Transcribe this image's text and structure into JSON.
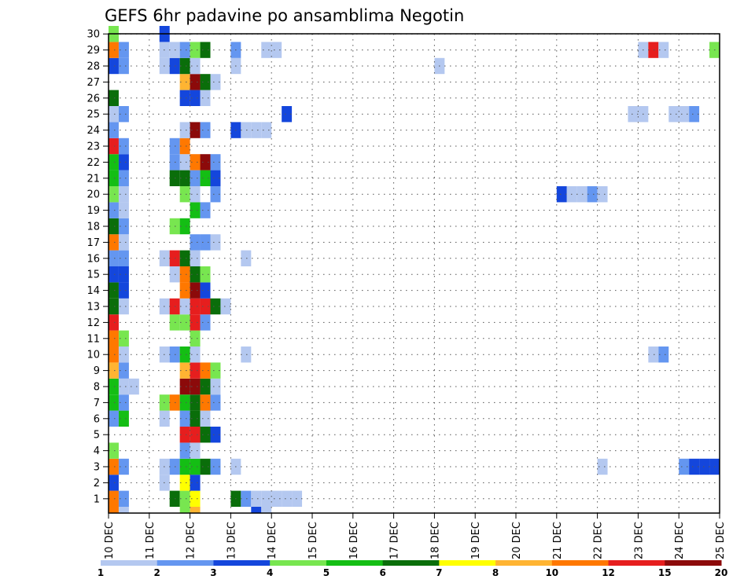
{
  "chart_data": {
    "type": "heatmap",
    "title": "GEFS 6hr padavine po ansamblima Negotin",
    "xlabel": "",
    "ylabel": "",
    "x_tick_labels": [
      "10 DEC",
      "11 DEC",
      "12 DEC",
      "13 DEC",
      "14 DEC",
      "15 DEC",
      "16 DEC",
      "17 DEC",
      "18 DEC",
      "19 DEC",
      "20 DEC",
      "21 DEC",
      "22 DEC",
      "23 DEC",
      "24 DEC",
      "25 DEC"
    ],
    "y_tick_labels": [
      "1",
      "2",
      "3",
      "4",
      "5",
      "6",
      "7",
      "8",
      "9",
      "10",
      "11",
      "12",
      "13",
      "14",
      "15",
      "16",
      "17",
      "18",
      "19",
      "20",
      "21",
      "22",
      "23",
      "24",
      "25",
      "26",
      "27",
      "28",
      "29",
      "30"
    ],
    "x_unit": "6-hour step from 10 DEC 00Z",
    "xlim": [
      0,
      60
    ],
    "ylim": [
      0,
      30
    ],
    "grid": true,
    "colorbar": {
      "boundaries": [
        "1",
        "2",
        "3",
        "4",
        "5",
        "6",
        "7",
        "8",
        "10",
        "12",
        "15",
        "20"
      ],
      "colors": [
        "#b4c8f0",
        "#6496f0",
        "#1446dc",
        "#78e650",
        "#14be14",
        "#0a6e0a",
        "#ffff00",
        "#ffb432",
        "#ff7800",
        "#e61e1e",
        "#8c0a0a"
      ]
    },
    "cells": [
      [
        1,
        0,
        10
      ],
      [
        1,
        1,
        2
      ],
      [
        1,
        6,
        6
      ],
      [
        1,
        7,
        4
      ],
      [
        1,
        8,
        7
      ],
      [
        1,
        12,
        6
      ],
      [
        1,
        13,
        2
      ],
      [
        1,
        14,
        1
      ],
      [
        1,
        15,
        1
      ],
      [
        1,
        16,
        1
      ],
      [
        1,
        17,
        1
      ],
      [
        1,
        18,
        1
      ],
      [
        2,
        0,
        3
      ],
      [
        2,
        5,
        1
      ],
      [
        2,
        7,
        7
      ],
      [
        2,
        8,
        3
      ],
      [
        3,
        0,
        10
      ],
      [
        3,
        1,
        2
      ],
      [
        3,
        5,
        1
      ],
      [
        3,
        6,
        2
      ],
      [
        3,
        7,
        5
      ],
      [
        3,
        8,
        5
      ],
      [
        3,
        9,
        6
      ],
      [
        3,
        10,
        2
      ],
      [
        3,
        12,
        1
      ],
      [
        3,
        48,
        1
      ],
      [
        3,
        56,
        2
      ],
      [
        3,
        57,
        3
      ],
      [
        3,
        58,
        3
      ],
      [
        3,
        59,
        3
      ],
      [
        4,
        0,
        4
      ],
      [
        4,
        7,
        2
      ],
      [
        4,
        8,
        1
      ],
      [
        5,
        7,
        14
      ],
      [
        5,
        8,
        12
      ],
      [
        5,
        9,
        6
      ],
      [
        5,
        10,
        3
      ],
      [
        6,
        0,
        2
      ],
      [
        6,
        1,
        5
      ],
      [
        6,
        5,
        1
      ],
      [
        6,
        7,
        2
      ],
      [
        6,
        8,
        6
      ],
      [
        6,
        9,
        1
      ],
      [
        7,
        0,
        5
      ],
      [
        7,
        1,
        2
      ],
      [
        7,
        5,
        4
      ],
      [
        7,
        6,
        10
      ],
      [
        7,
        7,
        5
      ],
      [
        7,
        8,
        6
      ],
      [
        7,
        9,
        10
      ],
      [
        7,
        10,
        2
      ],
      [
        8,
        0,
        5
      ],
      [
        8,
        1,
        1
      ],
      [
        8,
        2,
        1
      ],
      [
        8,
        7,
        20
      ],
      [
        8,
        8,
        15
      ],
      [
        8,
        9,
        6
      ],
      [
        8,
        10,
        1
      ],
      [
        9,
        0,
        8
      ],
      [
        9,
        1,
        2
      ],
      [
        9,
        7,
        8
      ],
      [
        9,
        8,
        12
      ],
      [
        9,
        9,
        10
      ],
      [
        9,
        10,
        4
      ],
      [
        10,
        0,
        10
      ],
      [
        10,
        1,
        1
      ],
      [
        10,
        5,
        1
      ],
      [
        10,
        6,
        2
      ],
      [
        10,
        7,
        5
      ],
      [
        10,
        8,
        1
      ],
      [
        10,
        13,
        1
      ],
      [
        10,
        53,
        1
      ],
      [
        10,
        54,
        2
      ],
      [
        11,
        0,
        10
      ],
      [
        11,
        1,
        4
      ],
      [
        11,
        8,
        4
      ],
      [
        12,
        0,
        12
      ],
      [
        12,
        6,
        4
      ],
      [
        12,
        7,
        4
      ],
      [
        12,
        8,
        12
      ],
      [
        12,
        9,
        2
      ],
      [
        13,
        0,
        6
      ],
      [
        13,
        1,
        1
      ],
      [
        13,
        5,
        1
      ],
      [
        13,
        6,
        12
      ],
      [
        13,
        7,
        1
      ],
      [
        13,
        8,
        12
      ],
      [
        13,
        9,
        12
      ],
      [
        13,
        10,
        6
      ],
      [
        13,
        11,
        1
      ],
      [
        14,
        0,
        6
      ],
      [
        14,
        1,
        3
      ],
      [
        14,
        7,
        10
      ],
      [
        14,
        8,
        20
      ],
      [
        14,
        9,
        3
      ],
      [
        15,
        0,
        3
      ],
      [
        15,
        1,
        3
      ],
      [
        15,
        6,
        1
      ],
      [
        15,
        7,
        10
      ],
      [
        15,
        8,
        6
      ],
      [
        15,
        9,
        4
      ],
      [
        16,
        0,
        2
      ],
      [
        16,
        1,
        2
      ],
      [
        16,
        5,
        1
      ],
      [
        16,
        6,
        12
      ],
      [
        16,
        7,
        6
      ],
      [
        16,
        8,
        1
      ],
      [
        16,
        13,
        1
      ],
      [
        17,
        0,
        10
      ],
      [
        17,
        1,
        1
      ],
      [
        17,
        8,
        2
      ],
      [
        17,
        9,
        2
      ],
      [
        17,
        10,
        1
      ],
      [
        18,
        0,
        6
      ],
      [
        18,
        1,
        2
      ],
      [
        18,
        6,
        4
      ],
      [
        18,
        7,
        5
      ],
      [
        19,
        0,
        2
      ],
      [
        19,
        1,
        1
      ],
      [
        19,
        8,
        5
      ],
      [
        19,
        9,
        2
      ],
      [
        20,
        0,
        4
      ],
      [
        20,
        1,
        1
      ],
      [
        20,
        7,
        4
      ],
      [
        20,
        8,
        1
      ],
      [
        20,
        10,
        2
      ],
      [
        20,
        44,
        3
      ],
      [
        20,
        45,
        1
      ],
      [
        20,
        46,
        1
      ],
      [
        20,
        47,
        2
      ],
      [
        20,
        48,
        1
      ],
      [
        21,
        0,
        5
      ],
      [
        21,
        1,
        2
      ],
      [
        21,
        6,
        6
      ],
      [
        21,
        7,
        6
      ],
      [
        21,
        8,
        2
      ],
      [
        21,
        9,
        5
      ],
      [
        21,
        10,
        3
      ],
      [
        22,
        0,
        5
      ],
      [
        22,
        1,
        3
      ],
      [
        22,
        6,
        2
      ],
      [
        22,
        7,
        1
      ],
      [
        22,
        8,
        10
      ],
      [
        22,
        9,
        20
      ],
      [
        22,
        10,
        2
      ],
      [
        23,
        0,
        12
      ],
      [
        23,
        1,
        2
      ],
      [
        23,
        6,
        2
      ],
      [
        23,
        7,
        10
      ],
      [
        24,
        0,
        2
      ],
      [
        24,
        7,
        1
      ],
      [
        24,
        8,
        20
      ],
      [
        24,
        9,
        2
      ],
      [
        24,
        12,
        3
      ],
      [
        24,
        13,
        1
      ],
      [
        24,
        14,
        1
      ],
      [
        24,
        15,
        1
      ],
      [
        25,
        0,
        1
      ],
      [
        25,
        1,
        2
      ],
      [
        25,
        17,
        3
      ],
      [
        25,
        51,
        1
      ],
      [
        25,
        52,
        1
      ],
      [
        25,
        55,
        1
      ],
      [
        25,
        56,
        1
      ],
      [
        25,
        57,
        2
      ],
      [
        26,
        0,
        6
      ],
      [
        26,
        7,
        3
      ],
      [
        26,
        8,
        3
      ],
      [
        26,
        9,
        1
      ],
      [
        27,
        7,
        8
      ],
      [
        27,
        8,
        15
      ],
      [
        27,
        9,
        6
      ],
      [
        27,
        10,
        1
      ],
      [
        28,
        0,
        3
      ],
      [
        28,
        1,
        2
      ],
      [
        28,
        5,
        1
      ],
      [
        28,
        6,
        3
      ],
      [
        28,
        7,
        6
      ],
      [
        28,
        8,
        1
      ],
      [
        28,
        12,
        1
      ],
      [
        28,
        32,
        1
      ],
      [
        29,
        0,
        10
      ],
      [
        29,
        1,
        2
      ],
      [
        29,
        5,
        1
      ],
      [
        29,
        6,
        1
      ],
      [
        29,
        7,
        2
      ],
      [
        29,
        8,
        4
      ],
      [
        29,
        9,
        6
      ],
      [
        29,
        12,
        2
      ],
      [
        29,
        15,
        1
      ],
      [
        29,
        16,
        1
      ],
      [
        29,
        52,
        1
      ],
      [
        29,
        53,
        12
      ],
      [
        29,
        54,
        1
      ],
      [
        29,
        59,
        4
      ],
      [
        30,
        0,
        4
      ],
      [
        30,
        5,
        3
      ]
    ],
    "bottom_partial_cells": [
      [
        0,
        8,
        8
      ],
      [
        0,
        0,
        10
      ],
      [
        0,
        1,
        1
      ],
      [
        0,
        7,
        4
      ],
      [
        0,
        14,
        3
      ],
      [
        0,
        15,
        1
      ]
    ]
  }
}
